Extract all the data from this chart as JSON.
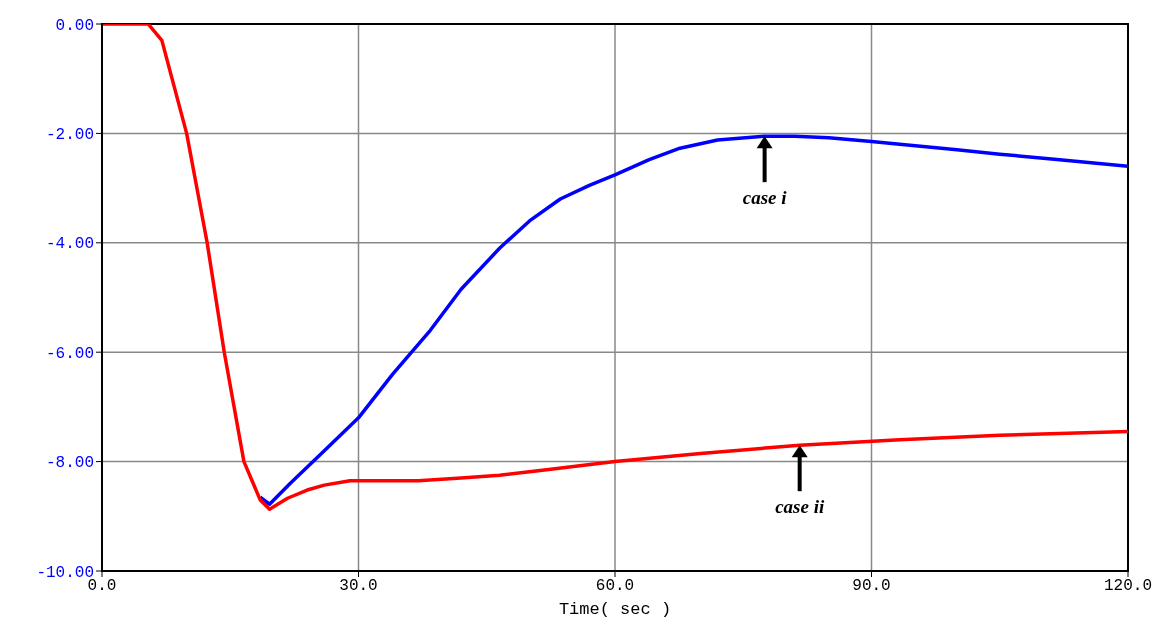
{
  "chart_data": {
    "type": "line",
    "xlabel": "Time( sec )",
    "xlim": [
      0,
      120
    ],
    "xticks": [
      {
        "value": 0,
        "label": "0.0"
      },
      {
        "value": 30,
        "label": "30.0"
      },
      {
        "value": 60,
        "label": "60.0"
      },
      {
        "value": 90,
        "label": "90.0"
      },
      {
        "value": 120,
        "label": "120.0"
      }
    ],
    "ylim": [
      -10,
      0
    ],
    "yticks": [
      {
        "value": -10,
        "label": "-10.00"
      },
      {
        "value": -8,
        "label": "-8.00"
      },
      {
        "value": -6,
        "label": "-6.00"
      },
      {
        "value": -4,
        "label": "-4.00"
      },
      {
        "value": -2,
        "label": "-2.00"
      },
      {
        "value": 0,
        "label": "0.00"
      }
    ],
    "grid": true,
    "legend": false,
    "marker": "none",
    "line_style": "solid",
    "series": [
      {
        "color": "#0000ff",
        "x": [
          18.5,
          19.6,
          22,
          26,
          30,
          34,
          38.4,
          42,
          46.5,
          50,
          53.6,
          57,
          60,
          64,
          67.6,
          72,
          77.5,
          81,
          85,
          90,
          93.3,
          100,
          105,
          112,
          120
        ],
        "values": [
          -8.65,
          -8.78,
          -8.4,
          -7.8,
          -7.2,
          -6.4,
          -5.6,
          -4.85,
          -4.1,
          -3.6,
          -3.2,
          -2.95,
          -2.76,
          -2.48,
          -2.27,
          -2.12,
          -2.05,
          -2.05,
          -2.08,
          -2.15,
          -2.2,
          -2.3,
          -2.38,
          -2.48,
          -2.6
        ]
      },
      {
        "color": "#ff0000",
        "x": [
          0,
          5.4,
          7,
          9.9,
          12.3,
          14.3,
          16.6,
          18.5,
          19.6,
          21.7,
          24,
          26,
          29,
          33,
          37,
          42,
          46.5,
          52,
          60,
          70,
          81.6,
          93.3,
          105,
          120
        ],
        "values": [
          0,
          0,
          -0.3,
          -2.0,
          -4.0,
          -6.0,
          -8.0,
          -8.7,
          -8.87,
          -8.67,
          -8.52,
          -8.43,
          -8.35,
          -8.35,
          -8.35,
          -8.3,
          -8.25,
          -8.15,
          -8.0,
          -7.85,
          -7.7,
          -7.6,
          -7.52,
          -7.45
        ]
      }
    ],
    "annotations": [
      {
        "text": "case i",
        "x": 77.5,
        "y": -2.05
      },
      {
        "text": "case ii",
        "x": 81.6,
        "y": -7.7
      }
    ]
  }
}
